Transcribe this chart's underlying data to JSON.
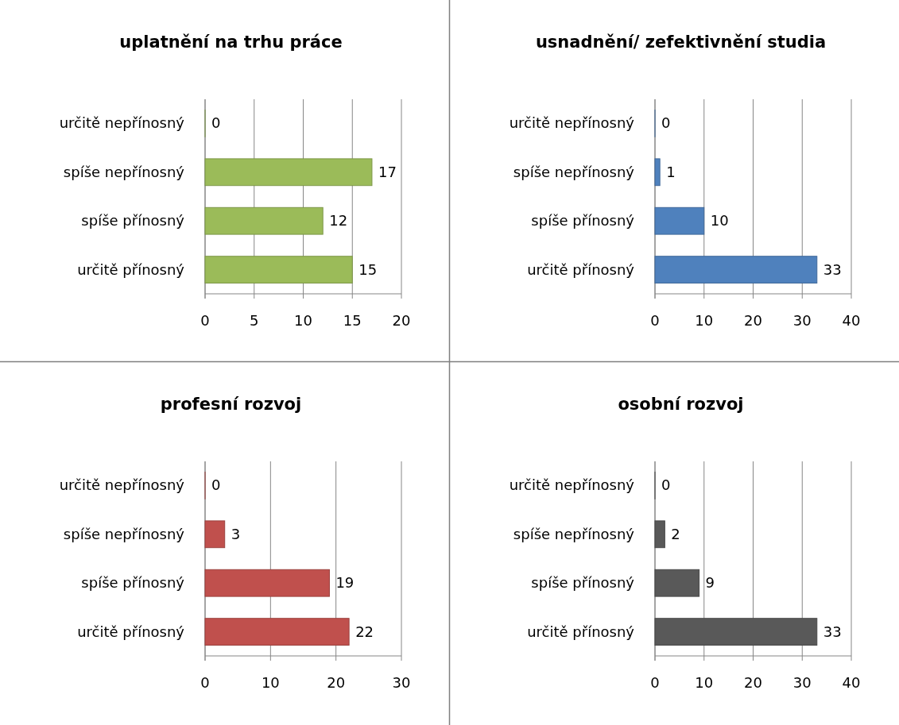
{
  "chart_data": [
    {
      "type": "bar",
      "orientation": "horizontal",
      "title": "uplatnění na trhu práce",
      "categories": [
        "určitě nepřínosný",
        "spíše nepřínosný",
        "spíše přínosný",
        "určitě přínosný"
      ],
      "values": [
        0,
        17,
        12,
        15
      ],
      "color": "#9bbb59",
      "xlim": [
        0,
        20
      ],
      "xticks": [
        0,
        5,
        10,
        15,
        20
      ],
      "grid": "x",
      "data_labels": true
    },
    {
      "type": "bar",
      "orientation": "horizontal",
      "title": "usnadnění/ zefektivnění studia",
      "categories": [
        "určitě nepřínosný",
        "spíše nepřínosný",
        "spíše přínosný",
        "určitě přínosný"
      ],
      "values": [
        0,
        1,
        10,
        33
      ],
      "color": "#4f81bd",
      "xlim": [
        0,
        40
      ],
      "xticks": [
        0,
        10,
        20,
        30,
        40
      ],
      "grid": "x",
      "data_labels": true
    },
    {
      "type": "bar",
      "orientation": "horizontal",
      "title": "profesní rozvoj",
      "categories": [
        "určitě nepřínosný",
        "spíše nepřínosný",
        "spíše přínosný",
        "určitě přínosný"
      ],
      "values": [
        0,
        3,
        19,
        22
      ],
      "color": "#c0504d",
      "xlim": [
        0,
        30
      ],
      "xticks": [
        0,
        10,
        20,
        30
      ],
      "grid": "x",
      "data_labels": true
    },
    {
      "type": "bar",
      "orientation": "horizontal",
      "title": "osobní rozvoj",
      "categories": [
        "určitě nepřínosný",
        "spíše nepřínosný",
        "spíše přínosný",
        "určitě přínosný"
      ],
      "values": [
        0,
        2,
        9,
        33
      ],
      "color": "#595959",
      "xlim": [
        0,
        40
      ],
      "xticks": [
        0,
        10,
        20,
        30,
        40
      ],
      "grid": "x",
      "data_labels": true
    }
  ]
}
